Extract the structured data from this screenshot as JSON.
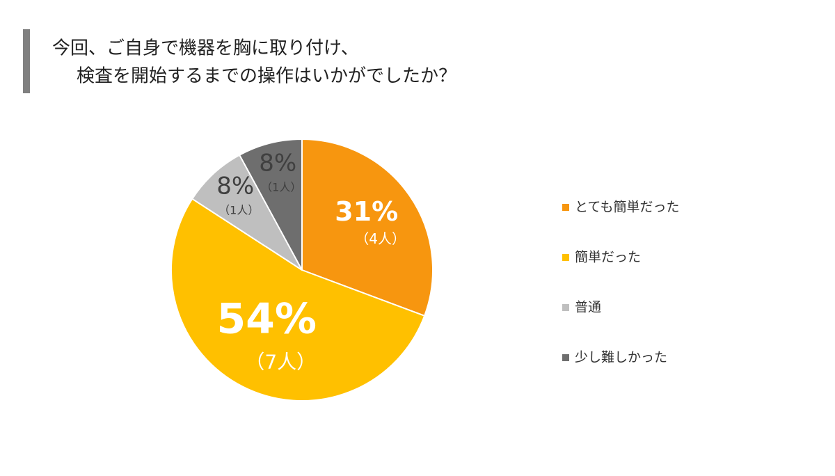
{
  "chart_data": {
    "type": "pie",
    "title": [
      "今回、ご自身で機器を胸に取り付け、",
      "検査を開始するまでの操作はいかがでしたか？"
    ],
    "categories": [
      "とても簡単だった",
      "簡単だった",
      "普通",
      "少し難しかった"
    ],
    "values": [
      31,
      54,
      8,
      8
    ],
    "value_labels": [
      "31%",
      "54%",
      "8%",
      "8%"
    ],
    "count_labels": [
      "（4人）",
      "（7人）",
      "（1人）",
      "（1人）"
    ],
    "colors": [
      "#F7960F",
      "#FFC000",
      "#BFBFBF",
      "#6E6E6E"
    ],
    "label_colors": [
      "#ffffff",
      "#ffffff",
      "#404040",
      "#404040"
    ],
    "legend": "right"
  }
}
